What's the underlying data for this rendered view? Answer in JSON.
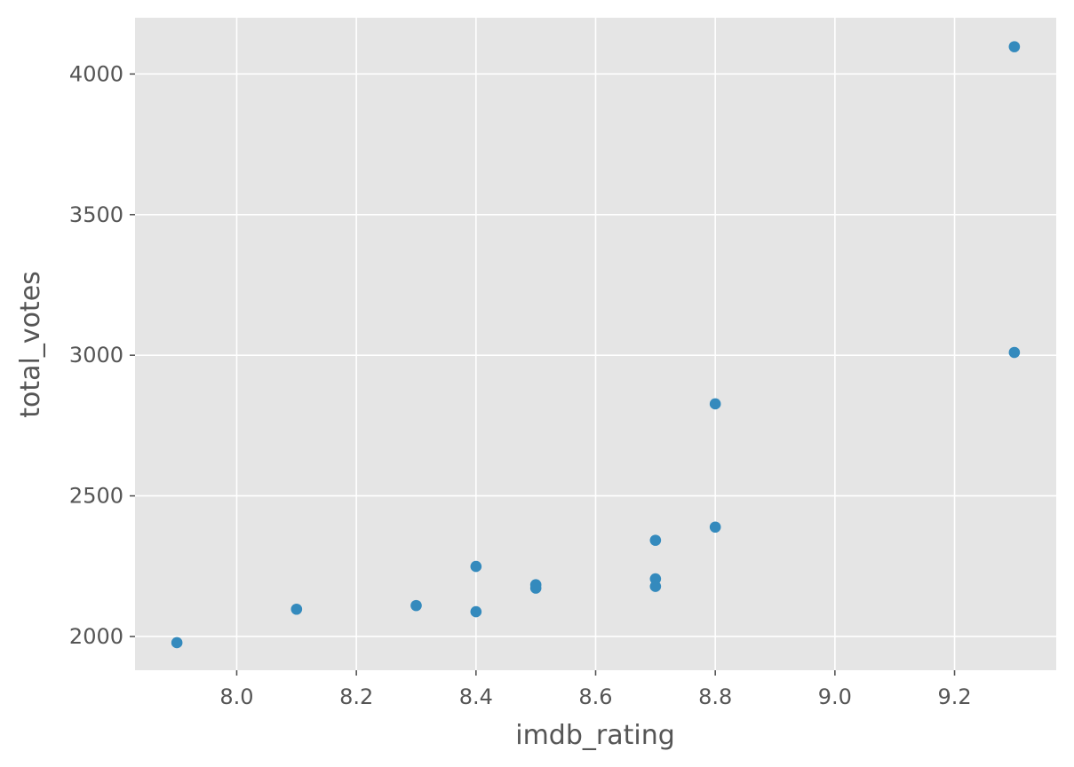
{
  "chart_data": {
    "type": "scatter",
    "title": "",
    "xlabel": "imdb_rating",
    "ylabel": "total_votes",
    "xlim": [
      7.83,
      9.37
    ],
    "ylim": [
      1880,
      4200
    ],
    "xticks": [
      8.0,
      8.2,
      8.4,
      8.6,
      8.8,
      9.0,
      9.2
    ],
    "xtick_labels": [
      "8.0",
      "8.2",
      "8.4",
      "8.6",
      "8.8",
      "9.0",
      "9.2"
    ],
    "yticks": [
      2000,
      2500,
      3000,
      3500,
      4000
    ],
    "ytick_labels": [
      "2000",
      "2500",
      "3000",
      "3500",
      "4000"
    ],
    "grid": true,
    "colors": {
      "background": "#E5E5E5",
      "grid": "#FFFFFF",
      "point": "#348ABD",
      "tick_text": "#555555",
      "label_text": "#555555"
    },
    "points": [
      {
        "x": 7.9,
        "y": 1978
      },
      {
        "x": 8.1,
        "y": 2097
      },
      {
        "x": 8.3,
        "y": 2110
      },
      {
        "x": 8.4,
        "y": 2088
      },
      {
        "x": 8.4,
        "y": 2249
      },
      {
        "x": 8.5,
        "y": 2172
      },
      {
        "x": 8.5,
        "y": 2184
      },
      {
        "x": 8.7,
        "y": 2178
      },
      {
        "x": 8.7,
        "y": 2205
      },
      {
        "x": 8.7,
        "y": 2342
      },
      {
        "x": 8.8,
        "y": 2389
      },
      {
        "x": 8.8,
        "y": 2827
      },
      {
        "x": 9.3,
        "y": 3010
      },
      {
        "x": 9.3,
        "y": 4097
      }
    ]
  }
}
